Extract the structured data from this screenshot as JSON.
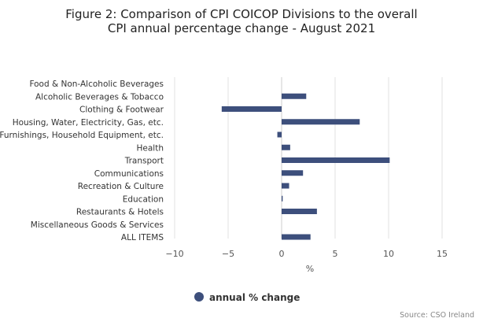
{
  "chart_data": {
    "type": "bar",
    "orientation": "horizontal",
    "title_lines": [
      "Figure 2: Comparison of CPI COICOP Divisions to the overall",
      "CPI annual percentage change - August 2021"
    ],
    "categories": [
      "Food & Non-Alcoholic Beverages",
      "Alcoholic Beverages & Tobacco",
      "Clothing & Footwear",
      "Housing, Water, Electricity, Gas, etc.",
      "Furnishings, Household Equipment, etc.",
      "Health",
      "Transport",
      "Communications",
      "Recreation & Culture",
      "Education",
      "Restaurants & Hotels",
      "Miscellaneous Goods & Services",
      "ALL ITEMS"
    ],
    "series": [
      {
        "name": "annual % change",
        "values": [
          0.0,
          2.3,
          -5.6,
          7.3,
          -0.4,
          0.8,
          10.1,
          2.0,
          0.7,
          0.1,
          3.3,
          0.0,
          2.7
        ],
        "color": "#3d4f7c"
      }
    ],
    "xlabel": "%",
    "xlim": [
      -10,
      15
    ],
    "xticks": [
      -10,
      -5,
      0,
      5,
      10,
      15
    ],
    "xtick_labels": [
      "−10",
      "−5",
      "0",
      "5",
      "10",
      "15"
    ],
    "grid": "vertical",
    "legend_position": "bottom",
    "source": "Source: CSO Ireland"
  }
}
